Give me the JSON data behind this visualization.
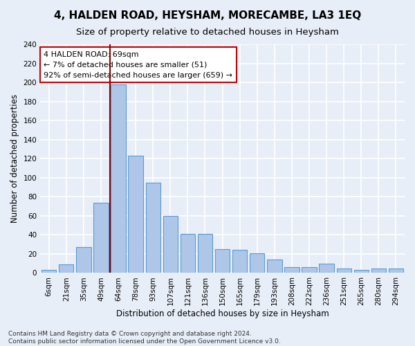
{
  "title": "4, HALDEN ROAD, HEYSHAM, MORECAMBE, LA3 1EQ",
  "subtitle": "Size of property relative to detached houses in Heysham",
  "xlabel": "Distribution of detached houses by size in Heysham",
  "ylabel": "Number of detached properties",
  "categories": [
    "6sqm",
    "21sqm",
    "35sqm",
    "49sqm",
    "64sqm",
    "78sqm",
    "93sqm",
    "107sqm",
    "121sqm",
    "136sqm",
    "150sqm",
    "165sqm",
    "179sqm",
    "193sqm",
    "208sqm",
    "222sqm",
    "236sqm",
    "251sqm",
    "265sqm",
    "280sqm",
    "294sqm"
  ],
  "values": [
    3,
    9,
    27,
    74,
    198,
    123,
    95,
    60,
    41,
    41,
    25,
    24,
    21,
    14,
    6,
    6,
    10,
    5,
    3,
    5,
    5
  ],
  "bar_color": "#aec6e8",
  "bar_edge_color": "#5b9bd5",
  "marker_line_color": "#8b0000",
  "annotation_line1": "4 HALDEN ROAD: 69sqm",
  "annotation_line2": "← 7% of detached houses are smaller (51)",
  "annotation_line3": "92% of semi-detached houses are larger (659) →",
  "annotation_box_color": "#ffffff",
  "annotation_box_edge": "#cc0000",
  "ylim": [
    0,
    240
  ],
  "yticks": [
    0,
    20,
    40,
    60,
    80,
    100,
    120,
    140,
    160,
    180,
    200,
    220,
    240
  ],
  "background_color": "#e8eef7",
  "grid_color": "#ffffff",
  "footer_line1": "Contains HM Land Registry data © Crown copyright and database right 2024.",
  "footer_line2": "Contains public sector information licensed under the Open Government Licence v3.0.",
  "title_fontsize": 11,
  "subtitle_fontsize": 9.5,
  "axis_label_fontsize": 8.5,
  "tick_fontsize": 7.5,
  "footer_fontsize": 6.5
}
